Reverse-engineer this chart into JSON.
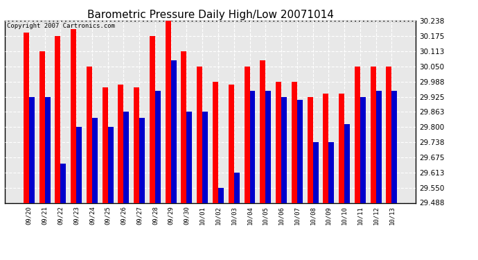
{
  "title": "Barometric Pressure Daily High/Low 20071014",
  "copyright": "Copyright 2007 Cartronics.com",
  "categories": [
    "09/20",
    "09/21",
    "09/22",
    "09/23",
    "09/24",
    "09/25",
    "09/26",
    "09/27",
    "09/28",
    "09/29",
    "09/30",
    "10/01",
    "10/02",
    "10/03",
    "10/04",
    "10/05",
    "10/06",
    "10/07",
    "10/08",
    "10/09",
    "10/10",
    "10/11",
    "10/12",
    "10/13"
  ],
  "highs": [
    30.19,
    30.113,
    30.175,
    30.205,
    30.05,
    29.963,
    29.975,
    29.963,
    30.175,
    30.238,
    30.113,
    30.05,
    29.988,
    29.975,
    30.05,
    30.075,
    29.988,
    29.988,
    29.925,
    29.938,
    29.938,
    30.05,
    30.05,
    30.05
  ],
  "lows": [
    29.925,
    29.925,
    29.65,
    29.8,
    29.838,
    29.8,
    29.863,
    29.838,
    29.95,
    30.075,
    29.863,
    29.863,
    29.55,
    29.613,
    29.95,
    29.95,
    29.925,
    29.913,
    29.738,
    29.738,
    29.813,
    29.925,
    29.95,
    29.95
  ],
  "high_color": "#ff0000",
  "low_color": "#0000cc",
  "ylim_min": 29.488,
  "ylim_max": 30.238,
  "yticks": [
    29.488,
    29.55,
    29.613,
    29.675,
    29.738,
    29.8,
    29.863,
    29.925,
    29.988,
    30.05,
    30.113,
    30.175,
    30.238
  ],
  "background_color": "#ffffff",
  "plot_bg_color": "#e8e8e8",
  "grid_color": "#ffffff",
  "title_fontsize": 11,
  "copyright_fontsize": 6.5,
  "bar_width": 0.35
}
